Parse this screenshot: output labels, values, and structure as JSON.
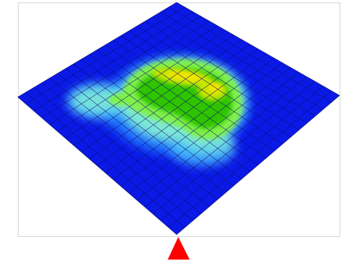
{
  "view": {
    "plate_color": "#0a19e6",
    "grid_line_color": "#0a0f70",
    "marker_color": "#ff0000",
    "frame_border_color": "#d9d9d9",
    "colormap": [
      "#0a19e6",
      "#1e78ff",
      "#4ccfff",
      "#7de8d8",
      "#7ff04a",
      "#2fc400",
      "#c8e600",
      "#f5e500",
      "#ffd400"
    ],
    "grid_divisions": 20
  }
}
